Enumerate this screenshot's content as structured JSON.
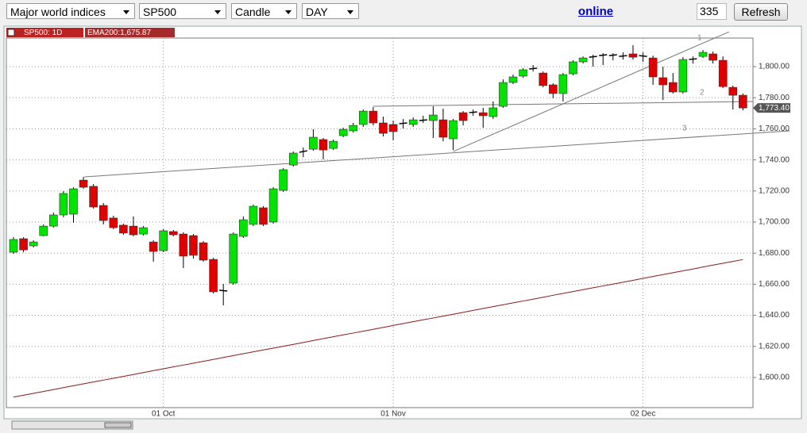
{
  "toolbar": {
    "market": "Major world indices",
    "symbol": "SP500",
    "chart_type": "Candle",
    "period": "DAY",
    "status": "online",
    "count": "335",
    "button": "Refresh"
  },
  "chart_data": {
    "type": "candlestick",
    "series_label": "SP500: 1D",
    "categories": [
      null,
      null,
      null,
      null,
      null,
      null,
      null,
      null,
      null,
      null,
      null,
      null,
      null,
      null,
      null,
      "01 Oct",
      null,
      null,
      null,
      null,
      null,
      null,
      null,
      null,
      null,
      null,
      null,
      null,
      null,
      null,
      null,
      null,
      null,
      null,
      null,
      null,
      null,
      null,
      "01 Nov",
      null,
      null,
      null,
      null,
      null,
      null,
      null,
      null,
      null,
      null,
      null,
      null,
      null,
      null,
      null,
      null,
      null,
      null,
      null,
      null,
      null,
      null,
      null,
      null,
      "02 Dec",
      null,
      null,
      null,
      null,
      null,
      null,
      null,
      null,
      null,
      null
    ],
    "open": [
      1680.6,
      1689.3,
      1684.7,
      1691.3,
      1697.4,
      1704.6,
      1705.1,
      1727.0,
      1723.0,
      1710.7,
      1702.6,
      1698.0,
      1697.4,
      1692.3,
      1687.2,
      1681.6,
      1693.9,
      1692.3,
      1691.3,
      1686.7,
      1676.0,
      1656.1,
      1660.7,
      1690.8,
      1698.5,
      1709.2,
      1700.0,
      1720.4,
      1736.7,
      1744.9,
      1746.9,
      1753.1,
      1747.4,
      1755.6,
      1758.7,
      1762.8,
      1771.4,
      1763.8,
      1762.8,
      1763.3,
      1762.8,
      1765.3,
      1765.3,
      1765.8,
      1753.6,
      1770.4,
      1770.4,
      1770.4,
      1767.9,
      1774.5,
      1789.8,
      1793.9,
      1798.5,
      1795.9,
      1788.3,
      1782.7,
      1795.4,
      1803.1,
      1806.1,
      1807.1,
      1807.1,
      1806.6,
      1808.2,
      1807.1,
      1805.6,
      1792.9,
      1789.8,
      1783.7,
      1804.6,
      1806.6,
      1808.2,
      1804.1,
      1786.7,
      1781.6
    ],
    "high": [
      1690.3,
      1690.3,
      1688.3,
      1698.5,
      1706.1,
      1719.9,
      1722.4,
      1729.1,
      1724.5,
      1712.2,
      1704.1,
      1699.0,
      1703.6,
      1697.4,
      1688.3,
      1695.4,
      1694.9,
      1693.4,
      1692.3,
      1687.8,
      1677.0,
      1660.2,
      1693.4,
      1703.6,
      1711.2,
      1710.2,
      1722.4,
      1734.7,
      1745.4,
      1748.0,
      1759.7,
      1754.1,
      1753.1,
      1760.7,
      1763.8,
      1772.4,
      1774.0,
      1767.9,
      1765.3,
      1766.3,
      1767.3,
      1768.4,
      1774.5,
      1773.0,
      1766.3,
      1771.4,
      1772.4,
      1773.5,
      1777.6,
      1791.8,
      1794.9,
      1799.0,
      1801.0,
      1796.9,
      1789.3,
      1795.9,
      1804.1,
      1806.6,
      1807.7,
      1808.7,
      1808.7,
      1809.2,
      1813.8,
      1809.2,
      1807.1,
      1800.0,
      1795.9,
      1806.1,
      1806.6,
      1810.7,
      1809.7,
      1806.6,
      1787.8,
      1782.7
    ],
    "low": [
      1679.6,
      1680.6,
      1683.7,
      1690.8,
      1696.4,
      1703.1,
      1699.5,
      1721.4,
      1708.7,
      1698.5,
      1695.4,
      1691.8,
      1690.8,
      1691.3,
      1674.5,
      1680.6,
      1690.8,
      1670.4,
      1676.5,
      1674.5,
      1654.1,
      1646.4,
      1659.7,
      1689.8,
      1697.4,
      1697.4,
      1699.0,
      1719.4,
      1735.7,
      1741.8,
      1745.9,
      1740.3,
      1746.4,
      1754.6,
      1757.6,
      1761.2,
      1762.2,
      1755.1,
      1752.6,
      1760.2,
      1761.2,
      1763.8,
      1754.1,
      1752.0,
      1746.4,
      1762.2,
      1768.4,
      1760.7,
      1766.3,
      1773.5,
      1788.8,
      1792.9,
      1796.9,
      1786.7,
      1779.6,
      1777.6,
      1794.4,
      1802.0,
      1800.0,
      1801.0,
      1804.1,
      1804.6,
      1804.6,
      1803.1,
      1788.3,
      1778.6,
      1782.7,
      1782.7,
      1802.0,
      1805.6,
      1802.0,
      1786.2,
      1772.4,
      1771.9
    ],
    "close": [
      1688.8,
      1682.1,
      1687.2,
      1697.4,
      1704.6,
      1718.4,
      1721.4,
      1722.4,
      1709.7,
      1701.0,
      1696.4,
      1692.9,
      1691.8,
      1696.4,
      1681.1,
      1694.4,
      1691.8,
      1678.1,
      1678.6,
      1675.5,
      1655.1,
      1655.6,
      1692.3,
      1701.5,
      1710.2,
      1698.5,
      1721.4,
      1733.7,
      1744.4,
      1745.9,
      1754.6,
      1746.4,
      1752.0,
      1759.7,
      1762.2,
      1771.4,
      1763.8,
      1757.1,
      1758.2,
      1763.8,
      1765.8,
      1765.8,
      1768.9,
      1754.6,
      1765.3,
      1765.3,
      1770.9,
      1768.4,
      1773.5,
      1789.8,
      1793.4,
      1798.0,
      1799.0,
      1787.8,
      1782.7,
      1794.9,
      1803.1,
      1805.6,
      1806.6,
      1807.7,
      1807.7,
      1807.1,
      1806.1,
      1806.6,
      1793.4,
      1788.3,
      1783.7,
      1804.6,
      1805.1,
      1809.2,
      1804.1,
      1787.2,
      1781.6,
      1773.4
    ],
    "up_color": "#00e400",
    "down_color": "#e00000",
    "ema": {
      "name": "EMA200:1,675.87",
      "color": "#8b1a1a",
      "values": [
        1587.4,
        1588.6,
        1589.8,
        1591.0,
        1592.2,
        1593.5,
        1594.7,
        1595.9,
        1597.1,
        1598.3,
        1599.5,
        1600.7,
        1601.9,
        1603.2,
        1604.4,
        1605.6,
        1606.8,
        1608.0,
        1609.2,
        1610.4,
        1611.6,
        1612.9,
        1614.1,
        1615.3,
        1616.5,
        1617.7,
        1618.9,
        1620.1,
        1621.3,
        1622.5,
        1623.8,
        1625.0,
        1626.2,
        1627.4,
        1628.6,
        1629.8,
        1631.0,
        1632.2,
        1633.5,
        1634.7,
        1635.9,
        1637.1,
        1638.3,
        1639.5,
        1640.7,
        1641.9,
        1643.2,
        1644.4,
        1645.6,
        1646.8,
        1648.0,
        1649.2,
        1650.4,
        1651.6,
        1652.9,
        1654.1,
        1655.3,
        1656.5,
        1657.7,
        1658.9,
        1660.1,
        1661.3,
        1662.5,
        1663.8,
        1665.0,
        1666.2,
        1667.4,
        1668.6,
        1669.8,
        1671.1,
        1672.3,
        1673.5,
        1674.7,
        1675.87
      ]
    },
    "last_price": {
      "value": 1773.4,
      "label": "1,773.40"
    },
    "trendlines": [
      {
        "label": "1",
        "x": [
          44.0,
          71.6
        ],
        "y": [
          1745.4,
          1822.4
        ]
      },
      {
        "label": "2",
        "x": [
          36.0,
          74.0
        ],
        "y": [
          1774.5,
          1777.6
        ]
      },
      {
        "label": "3",
        "x": [
          7.1,
          77.7
        ],
        "y": [
          1729.1,
          1758.7
        ]
      }
    ],
    "ylim": [
      1580.6,
      1818.4
    ],
    "yticks": [
      {
        "value": 1600,
        "label": "1,600.00"
      },
      {
        "value": 1620,
        "label": "1,620.00"
      },
      {
        "value": 1640,
        "label": "1,640.00"
      },
      {
        "value": 1660,
        "label": "1,660.00"
      },
      {
        "value": 1680,
        "label": "1,680.00"
      },
      {
        "value": 1700,
        "label": "1,700.00"
      },
      {
        "value": 1720,
        "label": "1,720.00"
      },
      {
        "value": 1740,
        "label": "1,740.00"
      },
      {
        "value": 1760,
        "label": "1,760.00"
      },
      {
        "value": 1780,
        "label": "1,780.00"
      },
      {
        "value": 1800,
        "label": "1,800.00"
      }
    ],
    "grid": true
  }
}
